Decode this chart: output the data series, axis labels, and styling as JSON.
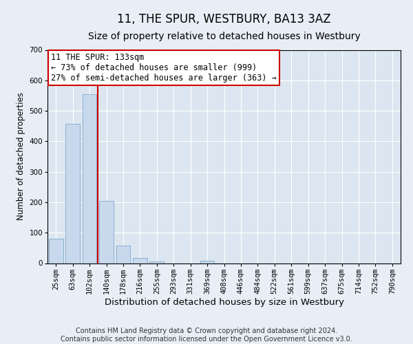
{
  "title": "11, THE SPUR, WESTBURY, BA13 3AZ",
  "subtitle": "Size of property relative to detached houses in Westbury",
  "xlabel": "Distribution of detached houses by size in Westbury",
  "ylabel": "Number of detached properties",
  "categories": [
    "25sqm",
    "63sqm",
    "102sqm",
    "140sqm",
    "178sqm",
    "216sqm",
    "255sqm",
    "293sqm",
    "331sqm",
    "369sqm",
    "408sqm",
    "446sqm",
    "484sqm",
    "522sqm",
    "561sqm",
    "599sqm",
    "637sqm",
    "675sqm",
    "714sqm",
    "752sqm",
    "790sqm"
  ],
  "values": [
    80,
    457,
    554,
    204,
    57,
    18,
    5,
    0,
    0,
    9,
    0,
    0,
    0,
    0,
    0,
    0,
    0,
    0,
    0,
    0,
    0
  ],
  "bar_color": "#c9d9ed",
  "bar_edge_color": "#7ba7c9",
  "vline_color": "#cc0000",
  "annotation_text": "11 THE SPUR: 133sqm\n← 73% of detached houses are smaller (999)\n27% of semi-detached houses are larger (363) →",
  "annotation_box_color": "#ffffff",
  "annotation_box_edge_color": "#cc0000",
  "ylim": [
    0,
    700
  ],
  "yticks": [
    0,
    100,
    200,
    300,
    400,
    500,
    600,
    700
  ],
  "background_color": "#e8eef5",
  "plot_bg_color": "#dce6f0",
  "footer": "Contains HM Land Registry data © Crown copyright and database right 2024.\nContains public sector information licensed under the Open Government Licence v3.0.",
  "title_fontsize": 12,
  "subtitle_fontsize": 10,
  "xlabel_fontsize": 9.5,
  "ylabel_fontsize": 8.5,
  "tick_fontsize": 7.5,
  "annotation_fontsize": 8.5,
  "footer_fontsize": 7
}
